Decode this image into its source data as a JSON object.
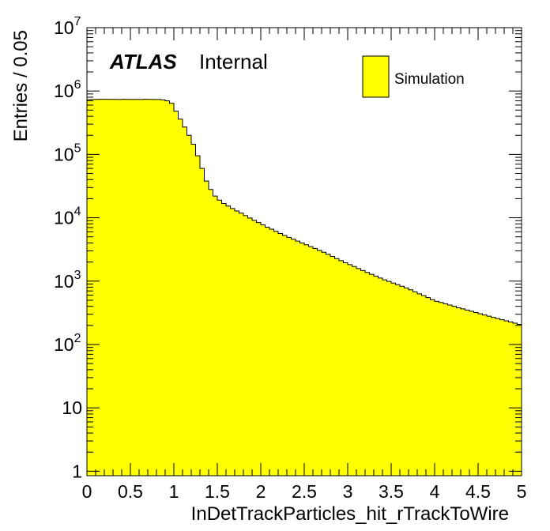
{
  "chart_data": {
    "type": "histogram",
    "xlabel": "InDetTrackParticles_hit_rTrackToWire",
    "ylabel": "Entries / 0.05",
    "xlim": [
      0,
      5
    ],
    "ylim": [
      0.85,
      10000000
    ],
    "yscale": "log",
    "bin_width": 0.05,
    "fill_color": "#ffff00",
    "line_color": "#000000",
    "x_ticks": [
      "0",
      "0.5",
      "1",
      "1.5",
      "2",
      "2.5",
      "3",
      "3.5",
      "4",
      "4.5",
      "5"
    ],
    "y_ticks": [
      {
        "base": "1",
        "exp": ""
      },
      {
        "base": "10",
        "exp": ""
      },
      {
        "base": "10",
        "exp": "2"
      },
      {
        "base": "10",
        "exp": "3"
      },
      {
        "base": "10",
        "exp": "4"
      },
      {
        "base": "10",
        "exp": "5"
      },
      {
        "base": "10",
        "exp": "6"
      },
      {
        "base": "10",
        "exp": "7"
      }
    ],
    "atlas_label": "ATLAS",
    "atlas_status": "Internal",
    "legend": [
      {
        "name": "Simulation",
        "color": "#ffff00"
      }
    ],
    "legend_position": "top-right",
    "bin_edges_start": 0,
    "values": [
      730000,
      735000,
      738000,
      740000,
      740000,
      738000,
      739000,
      737000,
      740000,
      738000,
      736000,
      739000,
      737000,
      740000,
      738000,
      736000,
      735000,
      725000,
      700000,
      640000,
      480000,
      360000,
      270000,
      200000,
      145000,
      95000,
      60000,
      38000,
      28000,
      22000,
      19000,
      16800,
      15300,
      14000,
      12800,
      11800,
      10800,
      9900,
      9100,
      8400,
      7700,
      7100,
      6600,
      6100,
      5650,
      5250,
      4900,
      4580,
      4280,
      4000,
      3750,
      3500,
      3280,
      3050,
      2850,
      2650,
      2450,
      2270,
      2100,
      1950,
      1820,
      1700,
      1580,
      1470,
      1370,
      1280,
      1200,
      1120,
      1050,
      990,
      930,
      880,
      830,
      780,
      730,
      680,
      630,
      590,
      550,
      510,
      480,
      460,
      440,
      420,
      400,
      380,
      365,
      350,
      335,
      320,
      305,
      292,
      280,
      268,
      257,
      246,
      236,
      226,
      217,
      208
    ]
  }
}
